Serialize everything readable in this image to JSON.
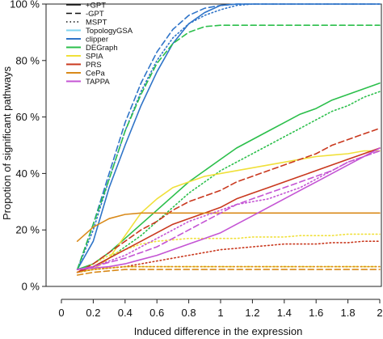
{
  "chart_data": {
    "type": "line",
    "xlabel": "Induced difference in the expression",
    "ylabel": "Propotion of significant pathways",
    "xlim": [
      0,
      2
    ],
    "ylim": [
      0,
      100
    ],
    "x_ticks": [
      "0",
      "0.2",
      "0.4",
      "0.6",
      "0.8",
      "1",
      "1.2",
      "1.4",
      "1.6",
      "1.8",
      "2"
    ],
    "y_ticks": [
      "0 %",
      "20 %",
      "40 %",
      "60 %",
      "80 %",
      "100 %"
    ],
    "y_tick_values": [
      0,
      20,
      40,
      60,
      80,
      100
    ],
    "grid": false,
    "legend_position": "top-left",
    "x": [
      0.1,
      0.2,
      0.3,
      0.4,
      0.5,
      0.6,
      0.7,
      0.8,
      0.9,
      1.0,
      1.1,
      1.2,
      1.3,
      1.4,
      1.5,
      1.6,
      1.7,
      1.8,
      1.9,
      2.0
    ],
    "legend_styles": [
      {
        "label": "+GPT",
        "dash": "solid"
      },
      {
        "label": "-GPT",
        "dash": "dashed"
      },
      {
        "label": "MSPT",
        "dash": "dotted"
      }
    ],
    "legend_methods": [
      {
        "label": "TopologyGSA",
        "color": "#7fd3f0"
      },
      {
        "label": "clipper",
        "color": "#2f74c8"
      },
      {
        "label": "DEGraph",
        "color": "#2bbf4b"
      },
      {
        "label": "SPIA",
        "color": "#f0e03a"
      },
      {
        "label": "PRS",
        "color": "#c9381e"
      },
      {
        "label": "CePa",
        "color": "#d98a1a"
      },
      {
        "label": "TAPPA",
        "color": "#c454d4"
      }
    ],
    "series": [
      {
        "method": "clipper",
        "style": "solid",
        "color": "#2f74c8",
        "values": [
          6,
          16,
          35,
          50,
          64,
          76,
          86,
          93,
          97,
          99.5,
          100,
          100,
          100,
          100,
          100,
          100,
          100,
          100,
          100,
          100
        ]
      },
      {
        "method": "clipper",
        "style": "dashed",
        "color": "#2f74c8",
        "values": [
          6,
          22,
          40,
          58,
          72,
          83,
          91,
          96,
          98.5,
          99.5,
          100,
          100,
          100,
          100,
          100,
          100,
          100,
          100,
          100,
          100
        ]
      },
      {
        "method": "clipper",
        "style": "dotted",
        "color": "#2f74c8",
        "values": [
          6,
          20,
          38,
          55,
          69,
          80,
          88,
          93,
          96,
          98,
          99.5,
          100,
          100,
          100,
          100,
          100,
          100,
          100,
          100,
          100
        ]
      },
      {
        "method": "DEGraph",
        "style": "solid",
        "color": "#2bbf4b",
        "values": [
          6,
          8,
          12,
          17,
          22,
          27,
          32,
          37,
          41,
          45,
          49,
          52,
          55,
          58,
          61,
          63,
          66,
          68,
          70,
          72
        ]
      },
      {
        "method": "DEGraph",
        "style": "dashed",
        "color": "#2bbf4b",
        "values": [
          6,
          22,
          38,
          55,
          68,
          79,
          86,
          90,
          92,
          92.5,
          92.5,
          92.5,
          92.5,
          92.5,
          92.5,
          92.5,
          92.5,
          92.5,
          92.5,
          92.5
        ]
      },
      {
        "method": "DEGraph",
        "style": "dotted",
        "color": "#2bbf4b",
        "values": [
          6,
          7,
          10,
          14,
          18,
          23,
          28,
          33,
          37,
          41,
          44,
          47,
          50,
          53,
          56,
          59,
          62,
          64,
          67,
          69
        ]
      },
      {
        "method": "SPIA",
        "style": "solid",
        "color": "#f0e03a",
        "values": [
          5,
          6,
          10,
          18,
          26,
          31,
          35,
          37,
          39,
          40,
          41,
          42,
          43,
          44,
          45,
          46,
          46.5,
          47,
          48,
          48
        ]
      },
      {
        "method": "SPIA",
        "style": "dashed",
        "color": "#f0e03a",
        "values": [
          5,
          6,
          6.5,
          7,
          7,
          7,
          7,
          7,
          7,
          7,
          7,
          7,
          7,
          7,
          7,
          7,
          7,
          7,
          7,
          7
        ]
      },
      {
        "method": "SPIA",
        "style": "dotted",
        "color": "#f0e03a",
        "values": [
          5,
          8,
          11,
          13,
          15,
          16,
          16.5,
          17,
          17,
          17,
          17,
          17.5,
          17.5,
          17.5,
          18,
          18,
          18,
          18.5,
          18.5,
          18.5
        ]
      },
      {
        "method": "PRS",
        "style": "solid",
        "color": "#c9381e",
        "values": [
          5,
          7,
          10,
          13,
          16,
          19,
          22,
          24,
          26,
          28,
          31,
          33,
          35,
          37,
          39,
          41,
          43,
          45,
          47,
          49
        ]
      },
      {
        "method": "PRS",
        "style": "dashed",
        "color": "#c9381e",
        "values": [
          5,
          8,
          12,
          16,
          20,
          23,
          27,
          30,
          32,
          34,
          37,
          39,
          41,
          43,
          45,
          47,
          50,
          52,
          54,
          56
        ]
      },
      {
        "method": "PRS",
        "style": "dotted",
        "color": "#c9381e",
        "values": [
          5,
          6,
          6.5,
          7,
          8,
          9,
          10,
          11,
          12,
          13,
          13.5,
          14,
          14.5,
          15,
          15,
          15,
          15.5,
          15.5,
          16,
          16
        ]
      },
      {
        "method": "CePa",
        "style": "solid",
        "color": "#d98a1a",
        "values": [
          16,
          21,
          24,
          25.5,
          26,
          26,
          26,
          26,
          26,
          26,
          26,
          26,
          26,
          26,
          26,
          26,
          26,
          26,
          26,
          26
        ]
      },
      {
        "method": "CePa",
        "style": "dashed",
        "color": "#d98a1a",
        "values": [
          4,
          5,
          5.5,
          6,
          6,
          6,
          6,
          6,
          6,
          6,
          6,
          6,
          6,
          6,
          6,
          6,
          6,
          6,
          6,
          6
        ]
      },
      {
        "method": "CePa",
        "style": "dotted",
        "color": "#d98a1a",
        "values": [
          5,
          6,
          6.5,
          7,
          7,
          7,
          7,
          7,
          7,
          7,
          7,
          7,
          7,
          7,
          7,
          7,
          7,
          7,
          7,
          7
        ]
      },
      {
        "method": "TAPPA",
        "style": "solid",
        "color": "#c454d4",
        "values": [
          6,
          6.5,
          7,
          8,
          9.5,
          11,
          13,
          15,
          17,
          19,
          22,
          25,
          28,
          31,
          34,
          37,
          40,
          43,
          46,
          49
        ]
      },
      {
        "method": "TAPPA",
        "style": "dashed",
        "color": "#c454d4",
        "values": [
          6,
          7,
          8.5,
          10,
          12,
          14,
          17,
          20,
          23,
          26,
          29,
          31,
          33,
          35,
          37,
          39,
          41,
          44,
          46,
          48
        ]
      },
      {
        "method": "TAPPA",
        "style": "dotted",
        "color": "#c454d4",
        "values": [
          6,
          7,
          9,
          11,
          14,
          17,
          20,
          23,
          25,
          27,
          29,
          30,
          31,
          33,
          35,
          38,
          41,
          44,
          46,
          48
        ]
      }
    ]
  }
}
